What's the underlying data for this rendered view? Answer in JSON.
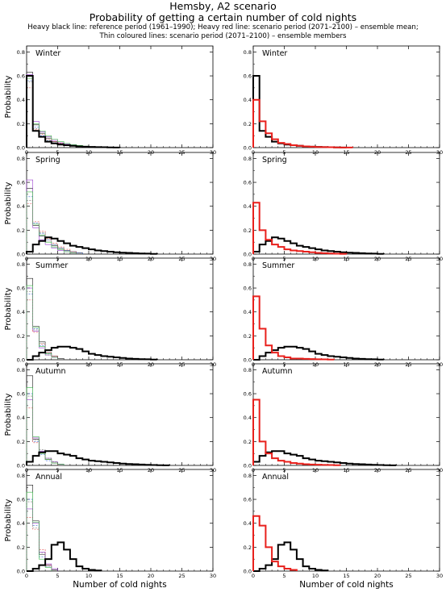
{
  "header": {
    "title": "Hemsby, A2 scenario",
    "subtitle": "Probability of getting a certain number of cold nights",
    "legend_line1": "Heavy black line: reference period (1961–1990); Heavy red line: scenario period (2071–2100) – ensemble mean;",
    "legend_line2": "Thin coloured lines: scenario period (2071–2100) – ensemble members"
  },
  "axes": {
    "ylabel": "Probability",
    "xlabel": "Number of cold nights",
    "xlim": [
      0,
      30
    ],
    "ylim": [
      0,
      0.85
    ],
    "xticks": [
      0,
      5,
      10,
      15,
      20,
      25,
      30
    ],
    "yticks": [
      0.0,
      0.2,
      0.4,
      0.6,
      0.8
    ],
    "ytick_labels": [
      "0.0",
      "0.2",
      "0.4",
      "0.6",
      "0.8"
    ],
    "xtick_labels": [
      "0",
      "5",
      "10",
      "15",
      "20",
      "25",
      "30"
    ]
  },
  "colors": {
    "reference": "#000000",
    "scenario_mean": "#e8201c",
    "members": [
      "#1a1a1a",
      "#3a6ad8",
      "#9b3fd0",
      "#e04848",
      "#3cb84a",
      "#707070",
      "#c8b02c"
    ]
  },
  "chart_data": [
    {
      "type": "step",
      "panel": "Winter",
      "column": "left",
      "series": [
        {
          "role": "reference",
          "values": [
            0.6,
            0.14,
            0.09,
            0.05,
            0.035,
            0.025,
            0.02,
            0.015,
            0.01,
            0.008,
            0.006,
            0.004,
            0.003,
            0.002,
            0.001
          ]
        },
        {
          "role": "member",
          "values": [
            0.63,
            0.19,
            0.12,
            0.08,
            0.05,
            0.035,
            0.022,
            0.015,
            0.01,
            0.006,
            0.004,
            0.002
          ]
        },
        {
          "role": "member",
          "values": [
            0.56,
            0.17,
            0.1,
            0.06,
            0.04,
            0.03,
            0.02,
            0.014,
            0.01,
            0.007,
            0.005,
            0.003
          ]
        },
        {
          "role": "member",
          "values": [
            0.61,
            0.22,
            0.13,
            0.09,
            0.06,
            0.04,
            0.03,
            0.02,
            0.012,
            0.008,
            0.005,
            0.003,
            0.002
          ]
        },
        {
          "role": "member",
          "values": [
            0.5,
            0.15,
            0.11,
            0.07,
            0.05,
            0.035,
            0.025,
            0.018,
            0.012,
            0.008,
            0.005
          ]
        },
        {
          "role": "member",
          "values": [
            0.58,
            0.2,
            0.14,
            0.1,
            0.07,
            0.05,
            0.035,
            0.025,
            0.018,
            0.012,
            0.008,
            0.005,
            0.004,
            0.003,
            0.002
          ]
        },
        {
          "role": "member",
          "values": [
            0.55,
            0.16,
            0.09,
            0.06,
            0.04,
            0.03,
            0.02,
            0.014,
            0.01,
            0.006
          ]
        }
      ]
    },
    {
      "type": "step",
      "panel": "Winter",
      "column": "right",
      "series": [
        {
          "role": "reference",
          "values": [
            0.6,
            0.14,
            0.09,
            0.05,
            0.035,
            0.025,
            0.02,
            0.015,
            0.01,
            0.008,
            0.006,
            0.004,
            0.003,
            0.002,
            0.001
          ]
        },
        {
          "role": "scenario_mean",
          "values": [
            0.4,
            0.22,
            0.12,
            0.07,
            0.04,
            0.03,
            0.02,
            0.015,
            0.01,
            0.008,
            0.005,
            0.004,
            0.003,
            0.002,
            0.001,
            0.001
          ]
        }
      ]
    },
    {
      "type": "step",
      "panel": "Spring",
      "column": "left",
      "series": [
        {
          "role": "reference",
          "values": [
            0.02,
            0.08,
            0.11,
            0.14,
            0.13,
            0.11,
            0.09,
            0.07,
            0.06,
            0.05,
            0.04,
            0.03,
            0.025,
            0.02,
            0.015,
            0.012,
            0.01,
            0.008,
            0.005,
            0.004,
            0.002
          ]
        },
        {
          "role": "member",
          "values": [
            0.55,
            0.24,
            0.15,
            0.1,
            0.07,
            0.04,
            0.03,
            0.02,
            0.01
          ]
        },
        {
          "role": "member",
          "values": [
            0.48,
            0.26,
            0.17,
            0.12,
            0.08,
            0.05,
            0.03,
            0.02,
            0.01
          ]
        },
        {
          "role": "member",
          "values": [
            0.62,
            0.22,
            0.12,
            0.08,
            0.05,
            0.03,
            0.02,
            0.01
          ]
        },
        {
          "role": "member",
          "values": [
            0.42,
            0.27,
            0.19,
            0.13,
            0.09,
            0.06,
            0.04,
            0.02
          ]
        },
        {
          "role": "member",
          "values": [
            0.52,
            0.25,
            0.16,
            0.1,
            0.06,
            0.04,
            0.02,
            0.01
          ]
        },
        {
          "role": "member",
          "values": [
            0.45,
            0.24,
            0.18,
            0.12,
            0.08,
            0.05,
            0.03,
            0.02
          ]
        }
      ]
    },
    {
      "type": "step",
      "panel": "Spring",
      "column": "right",
      "series": [
        {
          "role": "reference",
          "values": [
            0.02,
            0.08,
            0.11,
            0.14,
            0.13,
            0.11,
            0.09,
            0.07,
            0.06,
            0.05,
            0.04,
            0.03,
            0.025,
            0.02,
            0.015,
            0.012,
            0.01,
            0.008,
            0.005,
            0.004,
            0.002
          ]
        },
        {
          "role": "scenario_mean",
          "values": [
            0.43,
            0.2,
            0.12,
            0.08,
            0.06,
            0.04,
            0.03,
            0.025,
            0.02,
            0.015,
            0.01,
            0.008,
            0.005,
            0.003,
            0.002
          ]
        }
      ]
    },
    {
      "type": "step",
      "panel": "Summer",
      "column": "left",
      "series": [
        {
          "role": "reference",
          "values": [
            0.0,
            0.03,
            0.06,
            0.08,
            0.1,
            0.11,
            0.11,
            0.1,
            0.09,
            0.07,
            0.05,
            0.04,
            0.03,
            0.025,
            0.02,
            0.015,
            0.01,
            0.008,
            0.005,
            0.004,
            0.002
          ]
        },
        {
          "role": "member",
          "values": [
            0.68,
            0.28,
            0.15,
            0.06,
            0.03,
            0.01
          ]
        },
        {
          "role": "member",
          "values": [
            0.55,
            0.26,
            0.12,
            0.05,
            0.02
          ]
        },
        {
          "role": "member",
          "values": [
            0.6,
            0.24,
            0.1,
            0.04,
            0.02
          ]
        },
        {
          "role": "member",
          "values": [
            0.5,
            0.23,
            0.13,
            0.06,
            0.03
          ]
        },
        {
          "role": "member",
          "values": [
            0.62,
            0.27,
            0.11,
            0.05,
            0.02
          ]
        },
        {
          "role": "member",
          "values": [
            0.57,
            0.25,
            0.14,
            0.04,
            0.02
          ]
        }
      ]
    },
    {
      "type": "step",
      "panel": "Summer",
      "column": "right",
      "series": [
        {
          "role": "reference",
          "values": [
            0.0,
            0.03,
            0.06,
            0.08,
            0.1,
            0.11,
            0.11,
            0.1,
            0.09,
            0.07,
            0.05,
            0.04,
            0.03,
            0.025,
            0.02,
            0.015,
            0.01,
            0.008,
            0.005,
            0.004,
            0.002
          ]
        },
        {
          "role": "scenario_mean",
          "values": [
            0.53,
            0.26,
            0.12,
            0.06,
            0.03,
            0.02,
            0.01,
            0.01,
            0.008,
            0.006,
            0.004,
            0.003,
            0.002
          ]
        }
      ]
    },
    {
      "type": "step",
      "panel": "Autumn",
      "column": "left",
      "series": [
        {
          "role": "reference",
          "values": [
            0.03,
            0.08,
            0.11,
            0.12,
            0.12,
            0.1,
            0.09,
            0.08,
            0.06,
            0.05,
            0.04,
            0.035,
            0.03,
            0.025,
            0.02,
            0.015,
            0.012,
            0.01,
            0.008,
            0.005,
            0.003,
            0.002,
            0.001
          ]
        },
        {
          "role": "member",
          "values": [
            0.75,
            0.22,
            0.1,
            0.05,
            0.02,
            0.01
          ]
        },
        {
          "role": "member",
          "values": [
            0.6,
            0.2,
            0.09,
            0.04,
            0.02
          ]
        },
        {
          "role": "member",
          "values": [
            0.55,
            0.23,
            0.12,
            0.06,
            0.03,
            0.01
          ]
        },
        {
          "role": "member",
          "values": [
            0.48,
            0.19,
            0.11,
            0.05,
            0.02
          ]
        },
        {
          "role": "member",
          "values": [
            0.65,
            0.24,
            0.1,
            0.05,
            0.02,
            0.01
          ]
        },
        {
          "role": "member",
          "values": [
            0.58,
            0.21,
            0.13,
            0.06,
            0.03
          ]
        }
      ]
    },
    {
      "type": "step",
      "panel": "Autumn",
      "column": "right",
      "series": [
        {
          "role": "reference",
          "values": [
            0.03,
            0.08,
            0.11,
            0.12,
            0.12,
            0.1,
            0.09,
            0.08,
            0.06,
            0.05,
            0.04,
            0.035,
            0.03,
            0.025,
            0.02,
            0.015,
            0.012,
            0.01,
            0.008,
            0.005,
            0.003,
            0.002,
            0.001
          ]
        },
        {
          "role": "scenario_mean",
          "values": [
            0.55,
            0.2,
            0.1,
            0.06,
            0.04,
            0.03,
            0.02,
            0.015,
            0.01,
            0.008,
            0.006,
            0.004,
            0.003,
            0.002
          ]
        }
      ]
    },
    {
      "type": "step",
      "panel": "Annual",
      "column": "left",
      "series": [
        {
          "role": "reference",
          "values": [
            0.0,
            0.02,
            0.05,
            0.1,
            0.22,
            0.24,
            0.18,
            0.1,
            0.04,
            0.02,
            0.01,
            0.005
          ]
        },
        {
          "role": "member",
          "values": [
            0.72,
            0.42,
            0.14,
            0.05,
            0.01
          ]
        },
        {
          "role": "member",
          "values": [
            0.6,
            0.38,
            0.12,
            0.04
          ]
        },
        {
          "role": "member",
          "values": [
            0.52,
            0.4,
            0.16,
            0.06,
            0.02
          ]
        },
        {
          "role": "member",
          "values": [
            0.45,
            0.35,
            0.18,
            0.05
          ]
        },
        {
          "role": "member",
          "values": [
            0.66,
            0.41,
            0.1,
            0.03
          ]
        },
        {
          "role": "member",
          "values": [
            0.58,
            0.36,
            0.15,
            0.04
          ]
        }
      ]
    },
    {
      "type": "step",
      "panel": "Annual",
      "column": "right",
      "series": [
        {
          "role": "reference",
          "values": [
            0.0,
            0.02,
            0.05,
            0.1,
            0.22,
            0.24,
            0.18,
            0.1,
            0.04,
            0.02,
            0.01,
            0.005
          ]
        },
        {
          "role": "scenario_mean",
          "values": [
            0.46,
            0.38,
            0.2,
            0.08,
            0.04,
            0.02,
            0.01
          ]
        }
      ]
    }
  ]
}
